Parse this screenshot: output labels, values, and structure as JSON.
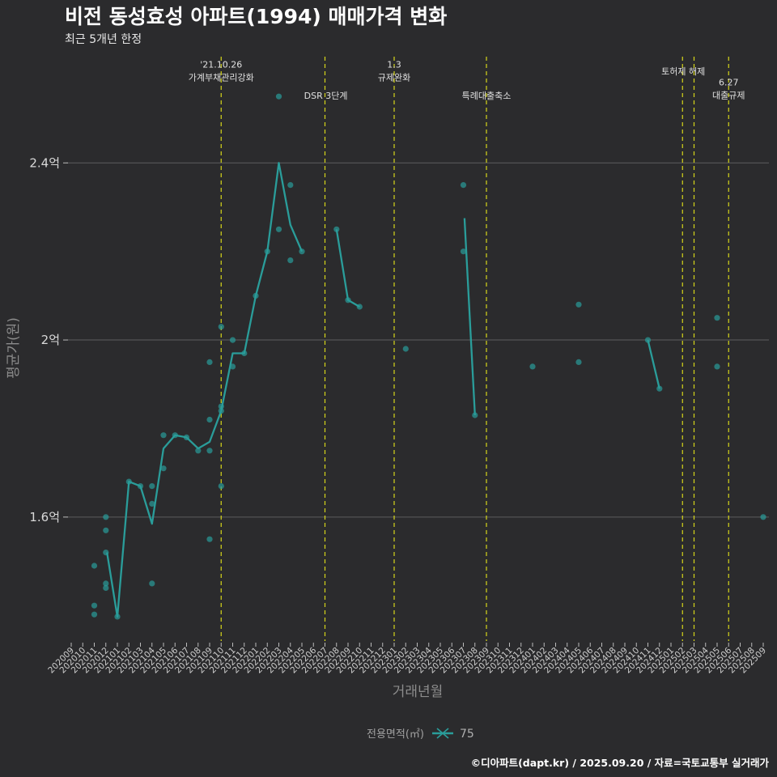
{
  "chart_data": {
    "type": "line",
    "title": "비전 동성효성 아파트(1994) 매매가격 변화",
    "subtitle": "최근 5개년 한정",
    "xlabel": "거래년월",
    "ylabel": "평균가(원)",
    "ylim": [
      1.32,
      2.64
    ],
    "yticks": [
      {
        "value": 1.6,
        "label": "1.6억"
      },
      {
        "value": 2.0,
        "label": "2억"
      },
      {
        "value": 2.4,
        "label": "2.4억"
      }
    ],
    "categories": [
      "202009",
      "202010",
      "202011",
      "202012",
      "202101",
      "202102",
      "202103",
      "202104",
      "202105",
      "202106",
      "202107",
      "202108",
      "202109",
      "202110",
      "202111",
      "202112",
      "202201",
      "202202",
      "202203",
      "202204",
      "202205",
      "202206",
      "202207",
      "202208",
      "202209",
      "202210",
      "202211",
      "202212",
      "202301",
      "202302",
      "202303",
      "202304",
      "202305",
      "202306",
      "202307",
      "202308",
      "202309",
      "202310",
      "202311",
      "202312",
      "202401",
      "202402",
      "202403",
      "202404",
      "202405",
      "202406",
      "202407",
      "202408",
      "202409",
      "202410",
      "202411",
      "202412",
      "202501",
      "202502",
      "202503",
      "202504",
      "202505",
      "202506",
      "202507",
      "202508",
      "202509"
    ],
    "series": [
      {
        "name": "75",
        "color": "#2a9d9a",
        "line_segments": [
          [
            {
              "x": 3.1,
              "y": 1.52
            },
            {
              "x": 4,
              "y": 1.375
            },
            {
              "x": 5,
              "y": 1.68
            },
            {
              "x": 6,
              "y": 1.67
            },
            {
              "x": 7,
              "y": 1.585
            },
            {
              "x": 8,
              "y": 1.755
            },
            {
              "x": 9,
              "y": 1.785
            },
            {
              "x": 10,
              "y": 1.78
            },
            {
              "x": 11,
              "y": 1.755
            },
            {
              "x": 12,
              "y": 1.77
            },
            {
              "x": 13,
              "y": 1.84
            },
            {
              "x": 14,
              "y": 1.97
            },
            {
              "x": 15,
              "y": 1.97
            },
            {
              "x": 16,
              "y": 2.1
            },
            {
              "x": 17,
              "y": 2.2
            },
            {
              "x": 18,
              "y": 2.4
            },
            {
              "x": 19,
              "y": 2.26
            },
            {
              "x": 20,
              "y": 2.2
            }
          ],
          [
            {
              "x": 23,
              "y": 2.25
            },
            {
              "x": 24,
              "y": 2.09
            },
            {
              "x": 25,
              "y": 2.075
            }
          ],
          [
            {
              "x": 34.1,
              "y": 2.275
            },
            {
              "x": 35,
              "y": 1.83
            }
          ],
          [
            {
              "x": 50,
              "y": 2.0
            },
            {
              "x": 51,
              "y": 1.89
            }
          ]
        ],
        "points": [
          {
            "x": 2,
            "y": 1.49
          },
          {
            "x": 2,
            "y": 1.4
          },
          {
            "x": 2,
            "y": 1.38
          },
          {
            "x": 3,
            "y": 1.6
          },
          {
            "x": 3,
            "y": 1.57
          },
          {
            "x": 3,
            "y": 1.52
          },
          {
            "x": 3,
            "y": 1.45
          },
          {
            "x": 3,
            "y": 1.44
          },
          {
            "x": 4,
            "y": 1.375
          },
          {
            "x": 5,
            "y": 1.68
          },
          {
            "x": 6,
            "y": 1.67
          },
          {
            "x": 7,
            "y": 1.67
          },
          {
            "x": 7,
            "y": 1.63
          },
          {
            "x": 7,
            "y": 1.45
          },
          {
            "x": 8,
            "y": 1.785
          },
          {
            "x": 8,
            "y": 1.71
          },
          {
            "x": 9,
            "y": 1.785
          },
          {
            "x": 10,
            "y": 1.78
          },
          {
            "x": 11,
            "y": 1.75
          },
          {
            "x": 12,
            "y": 1.95
          },
          {
            "x": 12,
            "y": 1.82
          },
          {
            "x": 12,
            "y": 1.75
          },
          {
            "x": 12,
            "y": 1.55
          },
          {
            "x": 13,
            "y": 2.03
          },
          {
            "x": 13,
            "y": 1.85
          },
          {
            "x": 13,
            "y": 1.84
          },
          {
            "x": 13,
            "y": 1.67
          },
          {
            "x": 14,
            "y": 2.0
          },
          {
            "x": 14,
            "y": 1.94
          },
          {
            "x": 15,
            "y": 1.97
          },
          {
            "x": 16,
            "y": 2.1
          },
          {
            "x": 17,
            "y": 2.2
          },
          {
            "x": 18,
            "y": 2.55
          },
          {
            "x": 18,
            "y": 2.25
          },
          {
            "x": 19,
            "y": 2.35
          },
          {
            "x": 19,
            "y": 2.18
          },
          {
            "x": 20,
            "y": 2.2
          },
          {
            "x": 23,
            "y": 2.25
          },
          {
            "x": 24,
            "y": 2.09
          },
          {
            "x": 25,
            "y": 2.075
          },
          {
            "x": 29,
            "y": 1.98
          },
          {
            "x": 34,
            "y": 2.35
          },
          {
            "x": 34,
            "y": 2.2
          },
          {
            "x": 35,
            "y": 1.83
          },
          {
            "x": 40,
            "y": 1.94
          },
          {
            "x": 44,
            "y": 2.08
          },
          {
            "x": 44,
            "y": 1.95
          },
          {
            "x": 50,
            "y": 2.0
          },
          {
            "x": 51,
            "y": 1.89
          },
          {
            "x": 56,
            "y": 2.05
          },
          {
            "x": 56,
            "y": 1.94
          },
          {
            "x": 60,
            "y": 1.6
          }
        ]
      }
    ],
    "vlines": [
      {
        "x": 13,
        "lines": [
          "'21.10.26",
          "가계부채관리강화"
        ],
        "label_y": 2.615
      },
      {
        "x": 22,
        "lines": [
          "DSR 3단계"
        ],
        "label_y": 2.545,
        "anchor": "end"
      },
      {
        "x": 28,
        "lines": [
          "1.3",
          "규제완화"
        ],
        "label_y": 2.615
      },
      {
        "x": 36,
        "lines": [
          "특례대출축소"
        ],
        "label_y": 2.545
      },
      {
        "x": 53,
        "lines": [
          "토허제 해제"
        ],
        "label_y": 2.6,
        "anchor": "end"
      },
      {
        "x": 54,
        "lines": [],
        "label_y": 2.6
      },
      {
        "x": 57,
        "lines": [
          "6.27",
          "대출규제"
        ],
        "label_y": 2.575
      }
    ],
    "legend": {
      "title": "전용면적(㎡)",
      "entries": [
        "75"
      ],
      "position": "bottom"
    },
    "caption": "©디아파트(dapt.kr) / 2025.09.20 / 자료=국토교통부 실거래가"
  }
}
